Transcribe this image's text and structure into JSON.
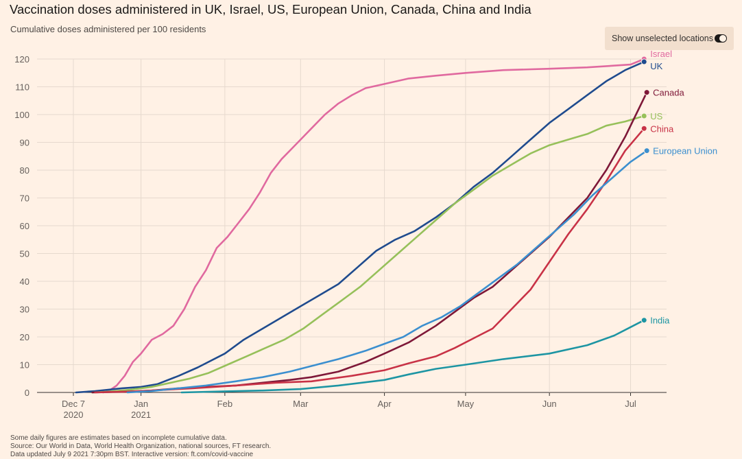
{
  "header": {
    "title": "Vaccination doses administered in UK, Israel, US, European Union, Canada, China and India",
    "subtitle": "Cumulative doses administered per 100 residents"
  },
  "toggle": {
    "label": "Show unselected locations",
    "state": "on"
  },
  "footer": {
    "line1": "Some daily figures are estimates based on incomplete cumulative data.",
    "line2": "Source: Our World in Data, World Health Organization, national sources, FT research.",
    "line3": "Data updated July 9 2021 7:30pm BST. Interactive version: ft.com/covid-vaccine"
  },
  "chart_data": {
    "type": "line",
    "title": "Vaccination doses administered in UK, Israel, US, European Union, Canada, China and India",
    "subtitle": "Cumulative doses administered per 100 residents",
    "xlabel": "",
    "ylabel": "",
    "ylim": [
      0,
      120
    ],
    "yticks": [
      0,
      10,
      20,
      30,
      40,
      50,
      60,
      70,
      80,
      90,
      100,
      110,
      120
    ],
    "xlim": [
      "2020-12-07",
      "2021-07-10"
    ],
    "xticks": [
      {
        "date": "2020-12-07",
        "label": "Dec 7",
        "sublabel": "2020"
      },
      {
        "date": "2021-01-01",
        "label": "Jan",
        "sublabel": "2021"
      },
      {
        "date": "2021-02-01",
        "label": "Feb",
        "sublabel": ""
      },
      {
        "date": "2021-03-01",
        "label": "Mar",
        "sublabel": ""
      },
      {
        "date": "2021-04-01",
        "label": "Apr",
        "sublabel": ""
      },
      {
        "date": "2021-05-01",
        "label": "May",
        "sublabel": ""
      },
      {
        "date": "2021-06-01",
        "label": "Jun",
        "sublabel": ""
      },
      {
        "date": "2021-07-01",
        "label": "Jul",
        "sublabel": ""
      }
    ],
    "grid": true,
    "legend": "direct labels at line ends",
    "series": [
      {
        "name": "Israel",
        "color": "#e0699f",
        "points": [
          [
            "2020-12-18",
            0
          ],
          [
            "2020-12-20",
            0.5
          ],
          [
            "2020-12-23",
            2.5
          ],
          [
            "2020-12-26",
            6
          ],
          [
            "2020-12-29",
            11
          ],
          [
            "2021-01-01",
            14
          ],
          [
            "2021-01-05",
            19
          ],
          [
            "2021-01-09",
            21
          ],
          [
            "2021-01-13",
            24
          ],
          [
            "2021-01-17",
            30
          ],
          [
            "2021-01-21",
            38
          ],
          [
            "2021-01-25",
            44
          ],
          [
            "2021-01-29",
            52
          ],
          [
            "2021-02-02",
            56
          ],
          [
            "2021-02-06",
            61
          ],
          [
            "2021-02-10",
            66
          ],
          [
            "2021-02-14",
            72
          ],
          [
            "2021-02-18",
            79
          ],
          [
            "2021-02-22",
            84
          ],
          [
            "2021-02-26",
            88
          ],
          [
            "2021-03-02",
            92
          ],
          [
            "2021-03-06",
            96
          ],
          [
            "2021-03-10",
            100
          ],
          [
            "2021-03-15",
            104
          ],
          [
            "2021-03-20",
            107
          ],
          [
            "2021-03-25",
            109.5
          ],
          [
            "2021-04-01",
            111
          ],
          [
            "2021-04-10",
            113
          ],
          [
            "2021-04-20",
            114
          ],
          [
            "2021-05-01",
            115
          ],
          [
            "2021-05-15",
            116
          ],
          [
            "2021-06-01",
            116.5
          ],
          [
            "2021-06-15",
            117
          ],
          [
            "2021-07-01",
            118
          ],
          [
            "2021-07-06",
            120
          ]
        ]
      },
      {
        "name": "UK",
        "color": "#1f4b8e",
        "points": [
          [
            "2020-12-08",
            0
          ],
          [
            "2020-12-15",
            0.5
          ],
          [
            "2020-12-25",
            1.5
          ],
          [
            "2021-01-01",
            2
          ],
          [
            "2021-01-07",
            3
          ],
          [
            "2021-01-15",
            6
          ],
          [
            "2021-01-22",
            9
          ],
          [
            "2021-02-01",
            14
          ],
          [
            "2021-02-08",
            19
          ],
          [
            "2021-02-15",
            23
          ],
          [
            "2021-02-22",
            27
          ],
          [
            "2021-03-01",
            31
          ],
          [
            "2021-03-08",
            35
          ],
          [
            "2021-03-15",
            39
          ],
          [
            "2021-03-22",
            45
          ],
          [
            "2021-03-29",
            51
          ],
          [
            "2021-04-05",
            55
          ],
          [
            "2021-04-12",
            58
          ],
          [
            "2021-04-20",
            63
          ],
          [
            "2021-04-27",
            68
          ],
          [
            "2021-05-04",
            74
          ],
          [
            "2021-05-11",
            79
          ],
          [
            "2021-05-18",
            85
          ],
          [
            "2021-05-25",
            91
          ],
          [
            "2021-06-01",
            97
          ],
          [
            "2021-06-08",
            102
          ],
          [
            "2021-06-15",
            107
          ],
          [
            "2021-06-22",
            112
          ],
          [
            "2021-06-29",
            116
          ],
          [
            "2021-07-06",
            119
          ]
        ]
      },
      {
        "name": "US",
        "color": "#96c05a",
        "points": [
          [
            "2020-12-14",
            0
          ],
          [
            "2020-12-20",
            0.3
          ],
          [
            "2020-12-28",
            1
          ],
          [
            "2021-01-05",
            2
          ],
          [
            "2021-01-12",
            3.5
          ],
          [
            "2021-01-19",
            5
          ],
          [
            "2021-01-26",
            7
          ],
          [
            "2021-02-02",
            10
          ],
          [
            "2021-02-09",
            13
          ],
          [
            "2021-02-16",
            16
          ],
          [
            "2021-02-23",
            19
          ],
          [
            "2021-03-02",
            23
          ],
          [
            "2021-03-09",
            28
          ],
          [
            "2021-03-16",
            33
          ],
          [
            "2021-03-23",
            38
          ],
          [
            "2021-03-30",
            44
          ],
          [
            "2021-04-06",
            50
          ],
          [
            "2021-04-13",
            56
          ],
          [
            "2021-04-20",
            62
          ],
          [
            "2021-04-27",
            68
          ],
          [
            "2021-05-04",
            73
          ],
          [
            "2021-05-11",
            78
          ],
          [
            "2021-05-18",
            82
          ],
          [
            "2021-05-25",
            86
          ],
          [
            "2021-06-01",
            89
          ],
          [
            "2021-06-08",
            91
          ],
          [
            "2021-06-15",
            93
          ],
          [
            "2021-06-22",
            96
          ],
          [
            "2021-06-29",
            97.5
          ],
          [
            "2021-07-06",
            99.5
          ]
        ]
      },
      {
        "name": "Canada",
        "color": "#7e1838",
        "points": [
          [
            "2020-12-14",
            0
          ],
          [
            "2020-12-25",
            0.2
          ],
          [
            "2021-01-05",
            0.7
          ],
          [
            "2021-01-15",
            1.5
          ],
          [
            "2021-01-25",
            2
          ],
          [
            "2021-02-05",
            2.5
          ],
          [
            "2021-02-15",
            3.5
          ],
          [
            "2021-02-25",
            4.5
          ],
          [
            "2021-03-05",
            5.5
          ],
          [
            "2021-03-15",
            7.5
          ],
          [
            "2021-03-25",
            11
          ],
          [
            "2021-04-01",
            14
          ],
          [
            "2021-04-10",
            18
          ],
          [
            "2021-04-20",
            24
          ],
          [
            "2021-04-27",
            29
          ],
          [
            "2021-05-04",
            34
          ],
          [
            "2021-05-11",
            38
          ],
          [
            "2021-05-18",
            44
          ],
          [
            "2021-05-25",
            50
          ],
          [
            "2021-06-01",
            56
          ],
          [
            "2021-06-08",
            63
          ],
          [
            "2021-06-15",
            70
          ],
          [
            "2021-06-22",
            80
          ],
          [
            "2021-06-29",
            92
          ],
          [
            "2021-07-03",
            100
          ],
          [
            "2021-07-07",
            108
          ]
        ]
      },
      {
        "name": "China",
        "color": "#c83246",
        "points": [
          [
            "2020-12-15",
            0
          ],
          [
            "2021-01-01",
            0.5
          ],
          [
            "2021-01-20",
            1.5
          ],
          [
            "2021-02-05",
            2.5
          ],
          [
            "2021-02-20",
            3.5
          ],
          [
            "2021-03-05",
            4
          ],
          [
            "2021-03-20",
            6
          ],
          [
            "2021-04-01",
            8
          ],
          [
            "2021-04-10",
            10.5
          ],
          [
            "2021-04-20",
            13
          ],
          [
            "2021-04-27",
            16
          ],
          [
            "2021-05-04",
            19.5
          ],
          [
            "2021-05-11",
            23
          ],
          [
            "2021-05-18",
            30
          ],
          [
            "2021-05-25",
            37
          ],
          [
            "2021-06-01",
            47
          ],
          [
            "2021-06-08",
            57
          ],
          [
            "2021-06-15",
            66
          ],
          [
            "2021-06-22",
            76
          ],
          [
            "2021-06-29",
            87
          ],
          [
            "2021-07-06",
            95
          ]
        ]
      },
      {
        "name": "European Union",
        "color": "#3b8fcf",
        "points": [
          [
            "2020-12-27",
            0
          ],
          [
            "2021-01-05",
            0.5
          ],
          [
            "2021-01-15",
            1.5
          ],
          [
            "2021-01-25",
            2.5
          ],
          [
            "2021-02-05",
            4
          ],
          [
            "2021-02-15",
            5.5
          ],
          [
            "2021-02-25",
            7.5
          ],
          [
            "2021-03-05",
            9.5
          ],
          [
            "2021-03-15",
            12
          ],
          [
            "2021-03-25",
            15
          ],
          [
            "2021-04-01",
            17.5
          ],
          [
            "2021-04-08",
            20
          ],
          [
            "2021-04-15",
            24
          ],
          [
            "2021-04-22",
            27
          ],
          [
            "2021-04-29",
            31
          ],
          [
            "2021-05-06",
            36
          ],
          [
            "2021-05-13",
            41
          ],
          [
            "2021-05-20",
            46
          ],
          [
            "2021-05-27",
            52
          ],
          [
            "2021-06-03",
            58
          ],
          [
            "2021-06-10",
            64
          ],
          [
            "2021-06-17",
            71
          ],
          [
            "2021-06-24",
            77
          ],
          [
            "2021-07-01",
            83
          ],
          [
            "2021-07-07",
            87
          ]
        ]
      },
      {
        "name": "India",
        "color": "#1d95a3",
        "points": [
          [
            "2021-01-16",
            0
          ],
          [
            "2021-02-01",
            0.4
          ],
          [
            "2021-02-15",
            0.7
          ],
          [
            "2021-03-01",
            1.2
          ],
          [
            "2021-03-15",
            2.5
          ],
          [
            "2021-04-01",
            4.5
          ],
          [
            "2021-04-10",
            6.5
          ],
          [
            "2021-04-20",
            8.5
          ],
          [
            "2021-05-01",
            10
          ],
          [
            "2021-05-15",
            12
          ],
          [
            "2021-06-01",
            14
          ],
          [
            "2021-06-15",
            17
          ],
          [
            "2021-06-25",
            20.5
          ],
          [
            "2021-07-01",
            23.5
          ],
          [
            "2021-07-06",
            26
          ]
        ]
      }
    ]
  }
}
